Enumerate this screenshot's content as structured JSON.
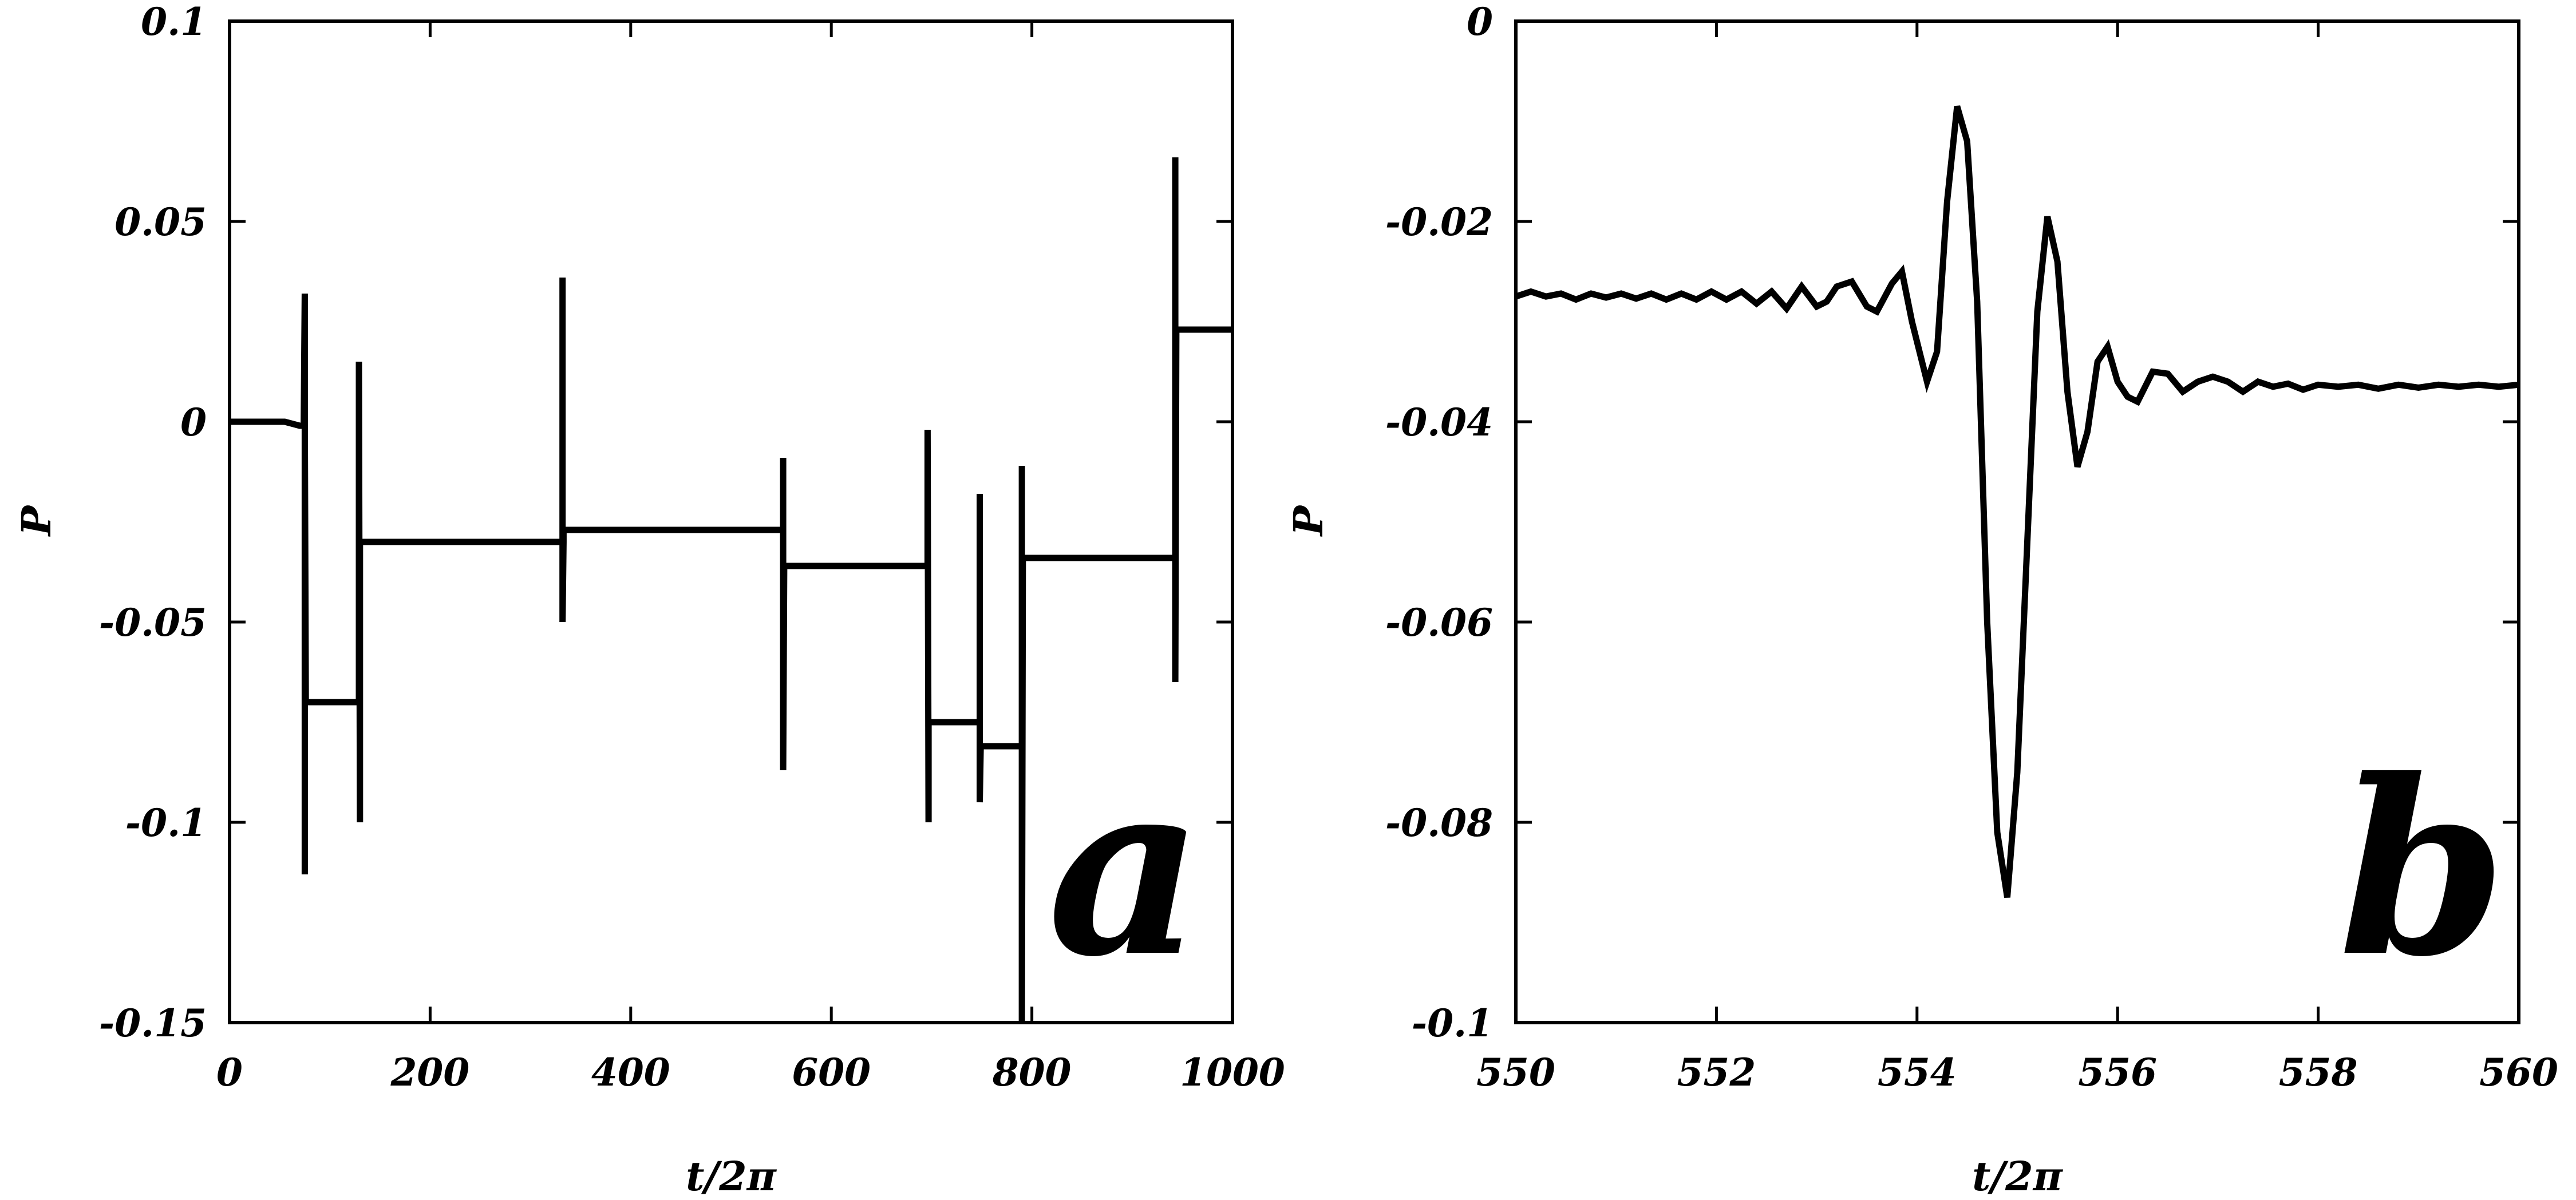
{
  "chart_data": [
    {
      "type": "line",
      "panel_label": "a",
      "xlabel": "t/2π",
      "ylabel": "P",
      "xlim": [
        0,
        1000
      ],
      "ylim": [
        -0.15,
        0.1
      ],
      "xticks": [
        "0",
        "200",
        "400",
        "600",
        "800",
        "1000"
      ],
      "yticks": [
        "0.1",
        "0.05",
        "0",
        "-0.05",
        "-0.1",
        "-0.15"
      ],
      "grid": false,
      "series": [
        {
          "color": "#000000",
          "x": [
            0,
            52,
            55,
            70,
            74,
            75,
            75,
            75,
            76,
            77,
            78,
            79,
            80,
            81,
            82,
            83,
            128,
            129,
            129,
            130,
            130,
            130,
            131,
            131,
            332,
            332,
            332,
            333,
            333,
            333,
            334,
            334,
            552,
            552,
            552,
            553,
            553,
            553,
            554,
            554,
            696,
            696,
            697,
            697,
            698,
            698,
            699,
            699,
            748,
            748,
            748,
            749,
            749,
            750,
            750,
            751,
            790,
            790,
            790,
            791,
            791,
            792,
            792,
            793,
            943,
            943,
            943,
            944,
            944,
            945,
            945,
            946,
            1000
          ],
          "y": [
            0,
            0,
            0,
            -0.001,
            -0.001,
            0.032,
            -0.113,
            0.0,
            -0.07,
            -0.07,
            -0.07,
            -0.07,
            -0.07,
            -0.07,
            -0.07,
            -0.07,
            -0.07,
            -0.07,
            0.015,
            -0.1,
            -0.03,
            -0.03,
            -0.03,
            -0.03,
            -0.03,
            0.036,
            -0.05,
            -0.03,
            -0.027,
            -0.027,
            -0.027,
            -0.027,
            -0.027,
            -0.009,
            -0.087,
            -0.036,
            -0.036,
            -0.036,
            -0.036,
            -0.036,
            -0.036,
            -0.002,
            -0.1,
            -0.075,
            -0.075,
            -0.075,
            -0.075,
            -0.075,
            -0.075,
            -0.018,
            -0.095,
            -0.081,
            -0.081,
            -0.081,
            -0.081,
            -0.081,
            -0.081,
            -0.011,
            -0.15,
            -0.034,
            -0.034,
            -0.034,
            -0.034,
            -0.034,
            -0.034,
            0.066,
            -0.065,
            0.023,
            0.023,
            0.023,
            0.023,
            0.023,
            0.023
          ]
        }
      ]
    },
    {
      "type": "line",
      "panel_label": "b",
      "xlabel": "t/2π",
      "ylabel": "P",
      "xlim": [
        550,
        560
      ],
      "ylim": [
        -0.1,
        0
      ],
      "xticks": [
        "550",
        "552",
        "554",
        "556",
        "558",
        "560"
      ],
      "yticks": [
        "0",
        "-0.02",
        "-0.04",
        "-0.06",
        "-0.08",
        "-0.1"
      ],
      "grid": false,
      "series": [
        {
          "color": "#000000",
          "x": [
            550.0,
            550.15,
            550.3,
            550.45,
            550.6,
            550.75,
            550.9,
            551.05,
            551.2,
            551.35,
            551.5,
            551.65,
            551.8,
            551.95,
            552.1,
            552.25,
            552.4,
            552.55,
            552.7,
            552.85,
            553.0,
            553.1,
            553.2,
            553.35,
            553.5,
            553.6,
            553.75,
            553.85,
            553.95,
            554.1,
            554.2,
            554.3,
            554.4,
            554.5,
            554.6,
            554.7,
            554.8,
            554.9,
            555.0,
            555.1,
            555.2,
            555.3,
            555.4,
            555.5,
            555.6,
            555.7,
            555.8,
            555.9,
            556.0,
            556.1,
            556.2,
            556.35,
            556.5,
            556.65,
            556.8,
            556.95,
            557.1,
            557.25,
            557.4,
            557.55,
            557.7,
            557.85,
            558.0,
            558.2,
            558.4,
            558.6,
            558.8,
            559.0,
            559.2,
            559.4,
            559.6,
            559.8,
            560.0
          ],
          "y": [
            -0.0275,
            -0.027,
            -0.0275,
            -0.0272,
            -0.0278,
            -0.0272,
            -0.0276,
            -0.0272,
            -0.0277,
            -0.0272,
            -0.0278,
            -0.0272,
            -0.0278,
            -0.027,
            -0.0278,
            -0.027,
            -0.0282,
            -0.027,
            -0.0287,
            -0.0265,
            -0.0285,
            -0.028,
            -0.0265,
            -0.026,
            -0.0285,
            -0.029,
            -0.0262,
            -0.025,
            -0.03,
            -0.036,
            -0.033,
            -0.018,
            -0.0085,
            -0.012,
            -0.028,
            -0.06,
            -0.081,
            -0.0875,
            -0.075,
            -0.052,
            -0.029,
            -0.0195,
            -0.024,
            -0.037,
            -0.0445,
            -0.041,
            -0.034,
            -0.0325,
            -0.036,
            -0.0375,
            -0.038,
            -0.035,
            -0.0352,
            -0.037,
            -0.036,
            -0.0355,
            -0.036,
            -0.037,
            -0.036,
            -0.0365,
            -0.0362,
            -0.0368,
            -0.0363,
            -0.0365,
            -0.0363,
            -0.0367,
            -0.0363,
            -0.0366,
            -0.0363,
            -0.0365,
            -0.0363,
            -0.0365,
            -0.0363
          ]
        }
      ]
    }
  ]
}
